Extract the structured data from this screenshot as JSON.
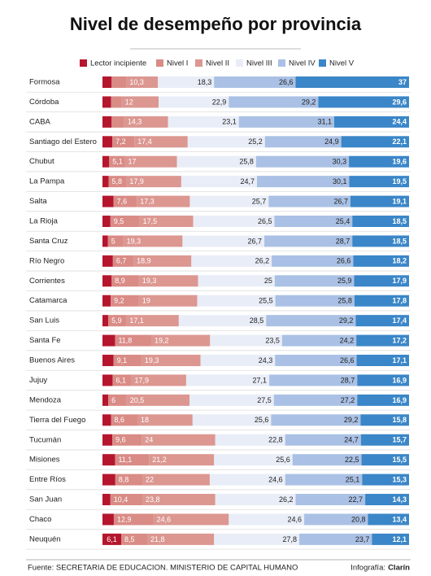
{
  "chart_data": {
    "type": "stacked-bar",
    "title": "Nivel de desempeño por provincia",
    "categories": [
      "Formosa",
      "Córdoba",
      "CABA",
      "Santiago del Estero",
      "Chubut",
      "La Pampa",
      "Salta",
      "La Rioja",
      "Santa Cruz",
      "Río Negro",
      "Corrientes",
      "Catamarca",
      "San Luis",
      "Santa Fe",
      "Buenos Aires",
      "Jujuy",
      "Mendoza",
      "Tierra del Fuego",
      "Tucumán",
      "Misiones",
      "Entre Ríos",
      "San Juan",
      "Chaco",
      "Neuquén"
    ],
    "xlim": [
      0,
      100
    ],
    "series": [
      {
        "name": "Lector incipiente",
        "color": "#b5162e",
        "values": [
          3,
          2.8,
          3,
          3.2,
          2.2,
          2,
          3.6,
          2.6,
          1.8,
          3.4,
          3,
          2.7,
          1.9,
          4.1,
          3.6,
          3.3,
          1.9,
          2.8,
          3.2,
          4.1,
          4.2,
          2.6,
          3.7,
          6.1
        ],
        "value_labels": [
          null,
          null,
          null,
          null,
          null,
          null,
          null,
          null,
          null,
          null,
          null,
          null,
          null,
          null,
          null,
          null,
          null,
          null,
          null,
          null,
          null,
          null,
          null,
          "6,1"
        ]
      },
      {
        "name": "Nivel I",
        "color": "#d98b86",
        "values": [
          4.8,
          3.5,
          4.1,
          7.2,
          5.1,
          5.8,
          7.6,
          9.5,
          5,
          6.7,
          8.9,
          9.2,
          5.9,
          11.8,
          9.1,
          6.1,
          6,
          8.6,
          9.6,
          11.1,
          8.8,
          10.4,
          12.9,
          8.5
        ],
        "value_labels": [
          null,
          null,
          null,
          "7,2",
          "5,1",
          "5,8",
          "7,6",
          "9,5",
          "5",
          "6,7",
          "8,9",
          "9,2",
          "5,9",
          "11,8",
          "9,1",
          "6,1",
          "6",
          "8,6",
          "9,6",
          "11,1",
          "8,8",
          "10,4",
          "12,9",
          "8,5"
        ]
      },
      {
        "name": "Nivel II",
        "color": "#dc9791",
        "values": [
          10.3,
          12,
          14.3,
          17.4,
          17,
          17.9,
          17.3,
          17.5,
          19.3,
          18.9,
          19.3,
          19,
          17.1,
          19.2,
          19.3,
          17.9,
          20.5,
          18,
          24,
          21.2,
          22,
          23.8,
          24.6,
          21.8
        ],
        "value_labels": [
          "10,3",
          "12",
          "14,3",
          "17,4",
          "17",
          "17,9",
          "17,3",
          "17,5",
          "19,3",
          "18,9",
          "19,3",
          "19",
          "17,1",
          "19,2",
          "19,3",
          "17,9",
          "20,5",
          "18",
          "24",
          "21,2",
          "22",
          "23,8",
          "24,6",
          "21,8"
        ]
      },
      {
        "name": "Nivel III",
        "color": "#e9edf7",
        "values": [
          18.3,
          22.9,
          23.1,
          25.2,
          25.8,
          24.7,
          25.7,
          26.5,
          26.7,
          26.2,
          25,
          25.5,
          28.5,
          23.5,
          24.3,
          27.1,
          27.5,
          25.6,
          22.8,
          25.6,
          24.6,
          26.2,
          24.6,
          27.8
        ],
        "value_labels": [
          "18,3",
          "22,9",
          "23,1",
          "25,2",
          "25,8",
          "24,7",
          "25,7",
          "26,5",
          "26,7",
          "26,2",
          "25",
          "25,5",
          "28,5",
          "23,5",
          "24,3",
          "27,1",
          "27,5",
          "25,6",
          "22,8",
          "25,6",
          "24,6",
          "26,2",
          "24,6",
          "27,8"
        ]
      },
      {
        "name": "Nivel IV",
        "color": "#aac1e5",
        "values": [
          26.6,
          29.2,
          31.1,
          24.9,
          30.3,
          30.1,
          26.7,
          25.4,
          28.7,
          26.6,
          25.9,
          25.8,
          29.2,
          24.2,
          26.6,
          28.7,
          27.2,
          29.2,
          24.7,
          22.5,
          25.1,
          22.7,
          20.8,
          23.7
        ],
        "value_labels": [
          "26,6",
          "29,2",
          "31,1",
          "24,9",
          "30,3",
          "30,1",
          "26,7",
          "25,4",
          "28,7",
          "26,6",
          "25,9",
          "25,8",
          "29,2",
          "24,2",
          "26,6",
          "28,7",
          "27,2",
          "29,2",
          "24,7",
          "22,5",
          "25,1",
          "22,7",
          "20,8",
          "23,7"
        ]
      },
      {
        "name": "Nivel V",
        "color": "#3a86c8",
        "values": [
          37,
          29.6,
          24.4,
          22.1,
          19.6,
          19.5,
          19.1,
          18.5,
          18.5,
          18.2,
          17.9,
          17.8,
          17.4,
          17.2,
          17.1,
          16.9,
          16.9,
          15.8,
          15.7,
          15.5,
          15.3,
          14.3,
          13.4,
          12.1
        ],
        "value_labels": [
          "37",
          "29,6",
          "24,4",
          "22,1",
          "19,6",
          "19,5",
          "19,1",
          "18,5",
          "18,5",
          "18,2",
          "17,9",
          "17,8",
          "17,4",
          "17,2",
          "17,1",
          "16,9",
          "16,9",
          "15,8",
          "15,7",
          "15,5",
          "15,3",
          "14,3",
          "13,4",
          "12,1"
        ]
      }
    ],
    "source": "Fuente: SECRETARIA DE EDUCACION. MINISTERIO DE CAPITAL HUMANO",
    "credit_label": "Infografía:",
    "credit": "Clarín"
  }
}
